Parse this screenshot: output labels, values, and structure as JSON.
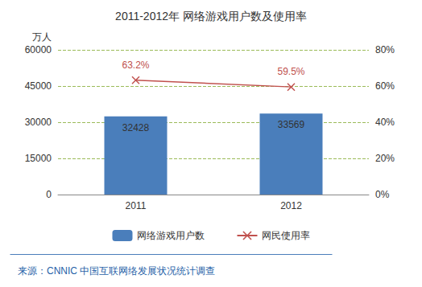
{
  "chart_data": {
    "type": "bar",
    "title": "2011-2012年 网络游戏用户数及使用率",
    "categories": [
      "2011",
      "2012"
    ],
    "y_label": "万人",
    "ylim": [
      0,
      60000
    ],
    "yticks": [
      0,
      15000,
      30000,
      45000,
      60000
    ],
    "y2lim": [
      0,
      80
    ],
    "y2ticks": [
      {
        "value": 0,
        "label": "0%"
      },
      {
        "value": 20,
        "label": "20%"
      },
      {
        "value": 40,
        "label": "40%"
      },
      {
        "value": 60,
        "label": "60%"
      },
      {
        "value": 80,
        "label": "80%"
      }
    ],
    "grid": true,
    "legend": "bottom",
    "source": "来源：CNNIC 中国互联网络发展状况统计调查",
    "series": [
      {
        "name": "网络游戏用户数",
        "type": "bar",
        "color": "#4a7ebb",
        "values": [
          32428,
          33569
        ],
        "data_labels": true
      },
      {
        "name": "网民使用率",
        "type": "line",
        "axis": "y2",
        "color": "#c0504d",
        "marker": "x",
        "values": [
          63.2,
          59.5
        ],
        "value_labels": [
          "63.2%",
          "59.5%"
        ],
        "data_labels": true
      }
    ]
  }
}
